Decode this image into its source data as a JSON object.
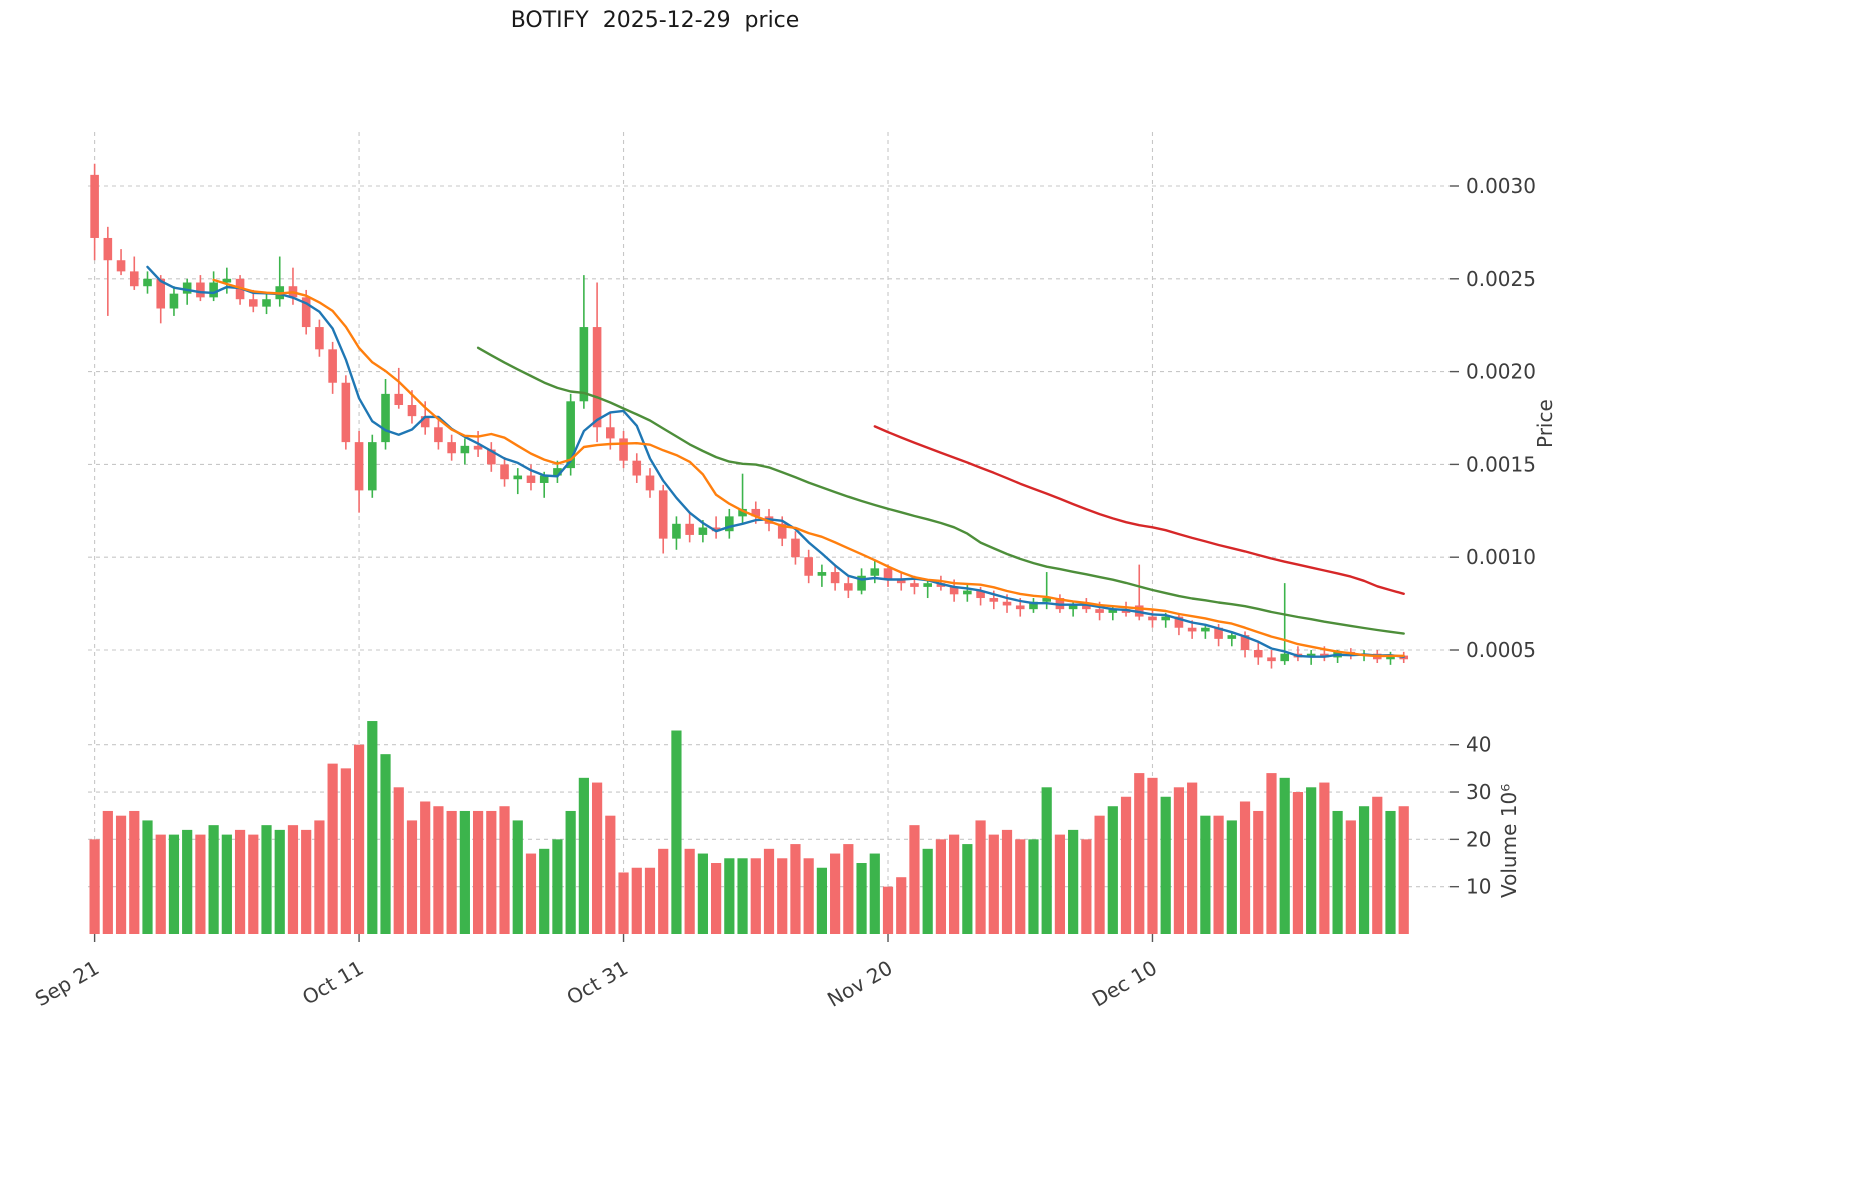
{
  "title": "BOTIFY  2025-12-29  price",
  "chart_data": {
    "type": "candlestick",
    "title": "BOTIFY  2025-12-29  price",
    "start_date": "2025-09-21",
    "end_date": "2025-12-29",
    "frequency": "daily",
    "grid": true,
    "legend": "none",
    "price_axis": {
      "label": "Price",
      "side": "right",
      "ticks": [
        0.0005,
        0.001,
        0.0015,
        0.002,
        0.0025,
        0.003
      ],
      "range": [
        0.00032,
        0.00318
      ]
    },
    "volume_axis": {
      "label": "Volume 10⁶",
      "side": "right",
      "unit": 1000000,
      "ticks": [
        10,
        20,
        30,
        40
      ],
      "range": [
        0,
        47
      ]
    },
    "x_ticks": {
      "labels": [
        "Sep 21",
        "Oct 11",
        "Oct 31",
        "Nov 20",
        "Dec 10"
      ],
      "indices": [
        0,
        20,
        40,
        60,
        80
      ]
    },
    "colors": {
      "up": "#3cb44c",
      "down": "#f36c6c",
      "grid": "#c7c7c7",
      "axis_text": "#3d3d3d",
      "ma_fast": "#1f77b4",
      "ma_mid": "#ff7f0e",
      "ma_slow": "#4d8e3a",
      "ma_slowest": "#d62728"
    },
    "moving_averages": [
      {
        "name": "MA5",
        "window": 5,
        "color_key": "ma_fast"
      },
      {
        "name": "MA10",
        "window": 10,
        "color_key": "ma_mid"
      },
      {
        "name": "MA30",
        "window": 30,
        "color_key": "ma_slow"
      },
      {
        "name": "MA60",
        "window": 60,
        "color_key": "ma_slowest"
      }
    ],
    "ohlc": [
      [
        0.00306,
        0.00312,
        0.0026,
        0.00272
      ],
      [
        0.00272,
        0.00278,
        0.0023,
        0.0026
      ],
      [
        0.0026,
        0.00266,
        0.00252,
        0.00254
      ],
      [
        0.00254,
        0.00262,
        0.00244,
        0.00246
      ],
      [
        0.00246,
        0.00254,
        0.00242,
        0.0025
      ],
      [
        0.0025,
        0.00252,
        0.00226,
        0.00234
      ],
      [
        0.00234,
        0.00246,
        0.0023,
        0.00242
      ],
      [
        0.00242,
        0.0025,
        0.00236,
        0.00248
      ],
      [
        0.00248,
        0.00252,
        0.00238,
        0.0024
      ],
      [
        0.0024,
        0.00254,
        0.00238,
        0.00248
      ],
      [
        0.00248,
        0.00256,
        0.00242,
        0.0025
      ],
      [
        0.0025,
        0.00252,
        0.00236,
        0.00239
      ],
      [
        0.00239,
        0.00244,
        0.00232,
        0.00235
      ],
      [
        0.00235,
        0.00242,
        0.00231,
        0.00239
      ],
      [
        0.00239,
        0.00262,
        0.00235,
        0.00246
      ],
      [
        0.00246,
        0.00256,
        0.00236,
        0.0024
      ],
      [
        0.0024,
        0.00244,
        0.0022,
        0.00224
      ],
      [
        0.00224,
        0.00228,
        0.00208,
        0.00212
      ],
      [
        0.00212,
        0.00216,
        0.00188,
        0.00194
      ],
      [
        0.00194,
        0.00198,
        0.00158,
        0.00162
      ],
      [
        0.00162,
        0.00168,
        0.00124,
        0.00136
      ],
      [
        0.00136,
        0.00166,
        0.00132,
        0.00162
      ],
      [
        0.00162,
        0.00196,
        0.00158,
        0.00188
      ],
      [
        0.00188,
        0.00202,
        0.0018,
        0.00182
      ],
      [
        0.00182,
        0.0019,
        0.00172,
        0.00176
      ],
      [
        0.00176,
        0.00184,
        0.00166,
        0.0017
      ],
      [
        0.0017,
        0.00174,
        0.00158,
        0.00162
      ],
      [
        0.00162,
        0.00166,
        0.00152,
        0.00156
      ],
      [
        0.00156,
        0.00164,
        0.0015,
        0.0016
      ],
      [
        0.0016,
        0.00168,
        0.00154,
        0.00158
      ],
      [
        0.00158,
        0.00162,
        0.00146,
        0.0015
      ],
      [
        0.0015,
        0.00154,
        0.00138,
        0.00142
      ],
      [
        0.00142,
        0.00148,
        0.00134,
        0.00144
      ],
      [
        0.00144,
        0.0015,
        0.00136,
        0.0014
      ],
      [
        0.0014,
        0.00146,
        0.00132,
        0.00144
      ],
      [
        0.00144,
        0.00152,
        0.0014,
        0.00148
      ],
      [
        0.00148,
        0.00188,
        0.00144,
        0.00184
      ],
      [
        0.00184,
        0.00252,
        0.0018,
        0.00224
      ],
      [
        0.00224,
        0.00248,
        0.00162,
        0.0017
      ],
      [
        0.0017,
        0.00178,
        0.00158,
        0.00164
      ],
      [
        0.00164,
        0.00168,
        0.00148,
        0.00152
      ],
      [
        0.00152,
        0.00156,
        0.0014,
        0.00144
      ],
      [
        0.00144,
        0.00148,
        0.00132,
        0.00136
      ],
      [
        0.00136,
        0.00139,
        0.00102,
        0.0011
      ],
      [
        0.0011,
        0.00122,
        0.00104,
        0.00118
      ],
      [
        0.00118,
        0.00124,
        0.00108,
        0.00112
      ],
      [
        0.00112,
        0.0012,
        0.00108,
        0.00116
      ],
      [
        0.00116,
        0.00122,
        0.0011,
        0.00114
      ],
      [
        0.00114,
        0.00126,
        0.0011,
        0.00122
      ],
      [
        0.00122,
        0.00145,
        0.00118,
        0.00126
      ],
      [
        0.00126,
        0.0013,
        0.00118,
        0.00122
      ],
      [
        0.00122,
        0.00126,
        0.00114,
        0.00118
      ],
      [
        0.00118,
        0.00122,
        0.00106,
        0.0011
      ],
      [
        0.0011,
        0.00114,
        0.00096,
        0.001
      ],
      [
        0.001,
        0.00104,
        0.00086,
        0.0009
      ],
      [
        0.0009,
        0.00096,
        0.00084,
        0.00092
      ],
      [
        0.00092,
        0.00096,
        0.00082,
        0.00086
      ],
      [
        0.00086,
        0.0009,
        0.00078,
        0.00082
      ],
      [
        0.00082,
        0.00094,
        0.0008,
        0.0009
      ],
      [
        0.0009,
        0.00098,
        0.00086,
        0.00094
      ],
      [
        0.00094,
        0.00096,
        0.00084,
        0.00088
      ],
      [
        0.00088,
        0.00092,
        0.00082,
        0.00086
      ],
      [
        0.00086,
        0.0009,
        0.0008,
        0.00084
      ],
      [
        0.00084,
        0.00088,
        0.00078,
        0.00086
      ],
      [
        0.00086,
        0.0009,
        0.00082,
        0.00084
      ],
      [
        0.00084,
        0.00088,
        0.00076,
        0.0008
      ],
      [
        0.0008,
        0.00086,
        0.00076,
        0.00082
      ],
      [
        0.00082,
        0.00084,
        0.00074,
        0.00078
      ],
      [
        0.00078,
        0.00082,
        0.00072,
        0.00076
      ],
      [
        0.00076,
        0.0008,
        0.0007,
        0.00074
      ],
      [
        0.00074,
        0.00078,
        0.00068,
        0.00072
      ],
      [
        0.00072,
        0.00078,
        0.0007,
        0.00076
      ],
      [
        0.00076,
        0.00092,
        0.00072,
        0.00078
      ],
      [
        0.00078,
        0.0008,
        0.0007,
        0.00072
      ],
      [
        0.00072,
        0.00076,
        0.00068,
        0.00074
      ],
      [
        0.00074,
        0.00078,
        0.0007,
        0.00072
      ],
      [
        0.00072,
        0.00076,
        0.00066,
        0.0007
      ],
      [
        0.0007,
        0.00074,
        0.00066,
        0.00072
      ],
      [
        0.00072,
        0.00076,
        0.00068,
        0.0007
      ],
      [
        0.00074,
        0.00096,
        0.00066,
        0.00068
      ],
      [
        0.00068,
        0.00072,
        0.00062,
        0.00066
      ],
      [
        0.00066,
        0.0007,
        0.00062,
        0.00068
      ],
      [
        0.00068,
        0.0007,
        0.00058,
        0.00062
      ],
      [
        0.00062,
        0.00066,
        0.00056,
        0.0006
      ],
      [
        0.0006,
        0.00064,
        0.00056,
        0.00062
      ],
      [
        0.00062,
        0.00064,
        0.00052,
        0.00056
      ],
      [
        0.00056,
        0.0006,
        0.00052,
        0.00058
      ],
      [
        0.00058,
        0.0006,
        0.00046,
        0.0005
      ],
      [
        0.0005,
        0.00054,
        0.00042,
        0.00046
      ],
      [
        0.00046,
        0.0005,
        0.0004,
        0.00044
      ],
      [
        0.00044,
        0.00086,
        0.00042,
        0.00048
      ],
      [
        0.00048,
        0.00052,
        0.00044,
        0.00046
      ],
      [
        0.00046,
        0.0005,
        0.00042,
        0.00048
      ],
      [
        0.00048,
        0.00052,
        0.00044,
        0.00046
      ],
      [
        0.00046,
        0.0005,
        0.00043,
        0.00049
      ],
      [
        0.00049,
        0.00051,
        0.00045,
        0.00047
      ],
      [
        0.00047,
        0.0005,
        0.00044,
        0.00048
      ],
      [
        0.00048,
        0.0005,
        0.00043,
        0.00045
      ],
      [
        0.00045,
        0.00049,
        0.00042,
        0.00047
      ],
      [
        0.00047,
        0.00049,
        0.00043,
        0.00045
      ]
    ],
    "volume": [
      20,
      26,
      25,
      26,
      24,
      21,
      21,
      22,
      21,
      23,
      21,
      22,
      21,
      23,
      22,
      23,
      22,
      24,
      36,
      35,
      40,
      45,
      38,
      31,
      24,
      28,
      27,
      26,
      26,
      26,
      26,
      27,
      24,
      17,
      18,
      20,
      26,
      33,
      32,
      25,
      13,
      14,
      14,
      18,
      43,
      18,
      17,
      15,
      16,
      16,
      16,
      18,
      16,
      19,
      16,
      14,
      17,
      19,
      15,
      17,
      10,
      12,
      23,
      18,
      20,
      21,
      19,
      24,
      21,
      22,
      20,
      20,
      31,
      21,
      22,
      20,
      25,
      27,
      29,
      34,
      33,
      29,
      31,
      32,
      25,
      25,
      24,
      28,
      26,
      34,
      33,
      30,
      31,
      32,
      26,
      24,
      27,
      29,
      26,
      27
    ]
  }
}
